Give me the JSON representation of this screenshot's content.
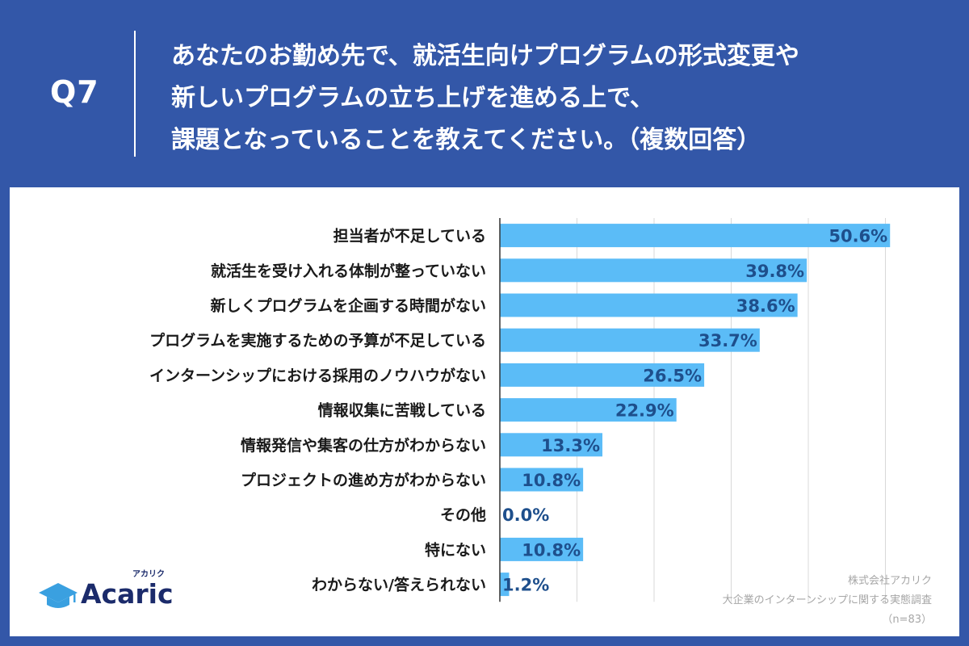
{
  "header": {
    "q_label": "Q7",
    "question_lines": [
      "あなたのお勤め先で、就活生向けプログラムの形式変更や",
      "新しいプログラムの立ち上げを進める上で、",
      "課題となっていることを教えてください。（複数回答）"
    ]
  },
  "chart_data": {
    "type": "bar",
    "orientation": "horizontal",
    "categories": [
      "担当者が不足している",
      "就活生を受け入れる体制が整っていない",
      "新しくプログラムを企画する時間がない",
      "プログラムを実施するための予算が不足している",
      "インターンシップにおける採用のノウハウがない",
      "情報収集に苦戦している",
      "情報発信や集客の仕方がわからない",
      "プロジェクトの進め方がわからない",
      "その他",
      "特にない",
      "わからない/答えられない"
    ],
    "values": [
      50.6,
      39.8,
      38.6,
      33.7,
      26.5,
      22.9,
      13.3,
      10.8,
      0.0,
      10.8,
      1.2
    ],
    "value_labels": [
      "50.6%",
      "39.8%",
      "38.6%",
      "33.7%",
      "26.5%",
      "22.9%",
      "13.3%",
      "10.8%",
      "0.0%",
      "10.8%",
      "1.2%"
    ],
    "xlim": [
      0,
      60
    ],
    "grid": true,
    "bar_color": "#5bbcf7",
    "value_label_color": "#1e4f8c"
  },
  "source": {
    "lines": [
      "株式会社アカリク",
      "大企業のインターンシップに関する実態調査",
      "（n=83）"
    ]
  },
  "logo": {
    "text": "Acaric",
    "kana": "アカリク",
    "icon": "graduation-cap-icon",
    "color": "#1b2b6b"
  }
}
